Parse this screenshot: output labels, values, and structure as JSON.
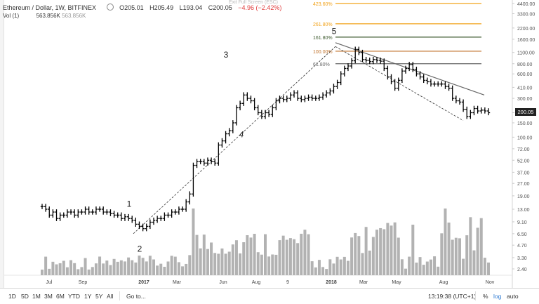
{
  "header": {
    "symbol": "Ethereum / Dollar, 1W, BITFINEX",
    "open": "O205.01",
    "high": "H205.49",
    "low": "L193.04",
    "close": "C200.05",
    "change": "−4.96 (−2.42%)",
    "exit_fullscreen": "Exit Full Screen (ESC)"
  },
  "volume_row": {
    "label": "Vol (1)",
    "value": "563.856K",
    "value2": "563.856K"
  },
  "last_price_tag": "200.05",
  "bottom_bar": {
    "ranges": [
      "1D",
      "5D",
      "1M",
      "3M",
      "6M",
      "YTD",
      "1Y",
      "5Y",
      "All"
    ],
    "goto": "Go to...",
    "clock": "13:19:38 (UTC+1)",
    "percent": "%",
    "log": "log",
    "auto": "auto"
  },
  "colors": {
    "up_bar": "#000000",
    "volume": "#b2b2b2",
    "fib_261": "#f2a31b",
    "fib_161": "#3f5b30",
    "fib_100": "#c0722a",
    "fib_61": "#666666",
    "trendline": "#666666",
    "log_active": "#2f7bd3"
  },
  "chart_data": {
    "type": "ohlc",
    "scale": "log",
    "x_tick_labels": [
      "Jul",
      "Sep",
      "2017",
      "Mar",
      "Jun",
      "Aug",
      "9",
      "2018",
      "Mar",
      "May",
      "Aug",
      "Nov"
    ],
    "y_tick_labels": [
      "4400.00",
      "3300.00",
      "2200.00",
      "1600.00",
      "1100.00",
      "800.00",
      "600.00",
      "410.00",
      "300.00",
      "200.00",
      "150.00",
      "100.00",
      "72.00",
      "52.00",
      "37.00",
      "27.00",
      "19.00",
      "13.00",
      "9.10",
      "6.50",
      "4.70",
      "3.30",
      "2.40"
    ],
    "wave_labels": [
      "1",
      "2",
      "3",
      "4",
      "5"
    ],
    "fib_labels": [
      "423.60%",
      "261.80%",
      "161.80%",
      "100.00%",
      "61.80%"
    ],
    "fib_levels": [
      4400,
      2480,
      1700,
      1140,
      800
    ],
    "close_series": [
      14,
      13,
      11,
      12,
      10,
      11,
      11,
      12,
      12,
      11,
      12,
      12,
      13,
      12,
      12,
      13,
      13,
      12,
      12,
      11.5,
      11,
      11,
      10,
      10.5,
      10,
      9.5,
      8.5,
      8,
      7.5,
      8,
      9,
      9.5,
      10,
      10,
      11,
      11,
      12,
      12,
      13,
      13,
      16,
      20,
      45,
      50,
      50,
      48,
      52,
      50,
      48,
      80,
      90,
      110,
      120,
      150,
      230,
      260,
      330,
      300,
      280,
      230,
      200,
      180,
      200,
      190,
      230,
      280,
      300,
      290,
      300,
      330,
      350,
      300,
      290,
      300,
      310,
      300,
      300,
      310,
      330,
      350,
      370,
      420,
      470,
      600,
      700,
      750,
      870,
      1200,
      1100,
      900,
      880,
      850,
      900,
      880,
      860,
      700,
      550,
      480,
      400,
      500,
      650,
      700,
      780,
      680,
      600,
      550,
      500,
      480,
      450,
      450,
      450,
      450,
      420,
      400,
      300,
      280,
      270,
      220,
      180,
      200,
      225,
      210,
      215,
      210,
      200
    ],
    "annotations": [
      "trendline from 2018 high falling to about 350",
      "dashed channel line from 2 through 4 to 5",
      "dashed channel line from 5 down to about 150"
    ]
  }
}
